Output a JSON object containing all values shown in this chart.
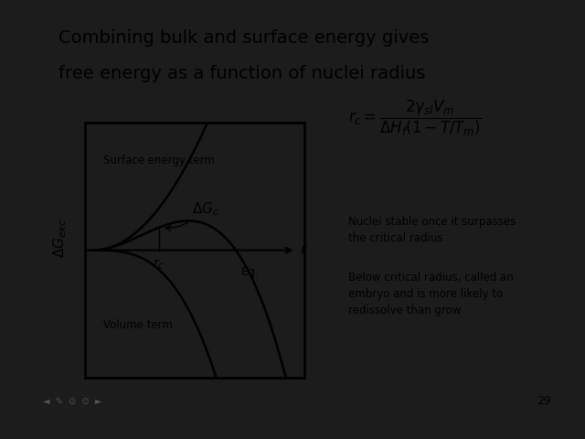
{
  "title_line1": "Combining bulk and surface energy gives",
  "title_line2": "free energy as a function of nuclei radius",
  "slide_bg": "#e8e8e8",
  "outer_bg": "#1c1c1c",
  "slide_number": "29",
  "note1": "Nuclei stable once it surpasses\nthe critical radius",
  "note2": "Below critical radius, called an\nembryo and is more likely to\nredissolve than grow",
  "surface_label": "Surface energy term",
  "volume_label": "Volume term",
  "dGc_label": "$\\Delta G_c$",
  "rc_label": "$r_c$",
  "r_label": "$r$",
  "ylabel_label": "$\\Delta G_{exc}$",
  "eq_label": "Eq."
}
